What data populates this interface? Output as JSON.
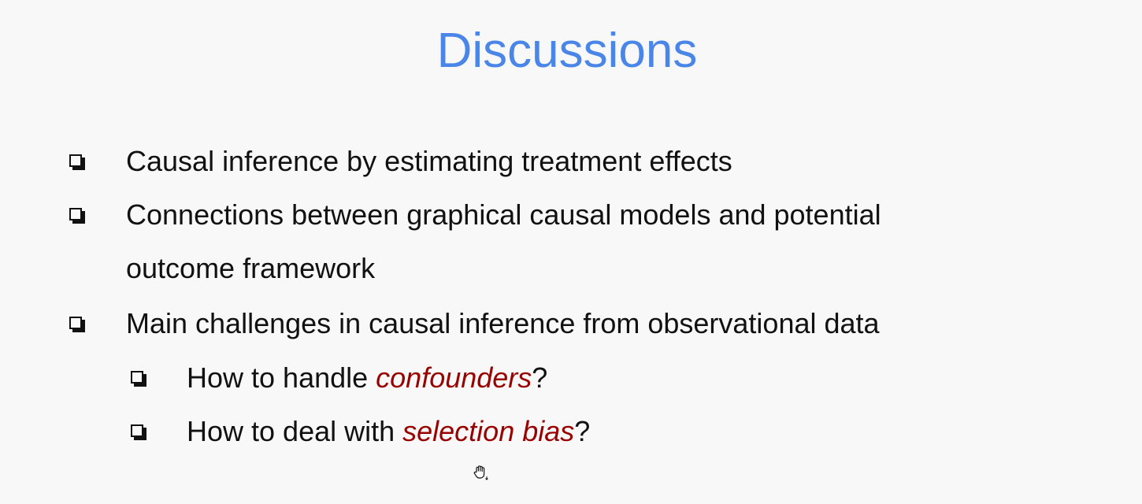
{
  "slide": {
    "title": "Discussions",
    "bullets": [
      {
        "text": "Causal inference by estimating treatment effects"
      },
      {
        "text_line1": "Connections between graphical causal models and potential",
        "text_line2": "outcome framework"
      },
      {
        "text": "Main challenges in causal inference from observational data"
      }
    ],
    "sub_bullets": [
      {
        "prefix": "How to handle ",
        "emphasis": "confounders",
        "suffix": "?"
      },
      {
        "prefix": "How to deal with ",
        "emphasis": "selection bias",
        "suffix": "?"
      }
    ],
    "emphasis_color": "#990000",
    "title_color": "#4a86e8",
    "cursor_icon": "grab-hand-icon"
  }
}
